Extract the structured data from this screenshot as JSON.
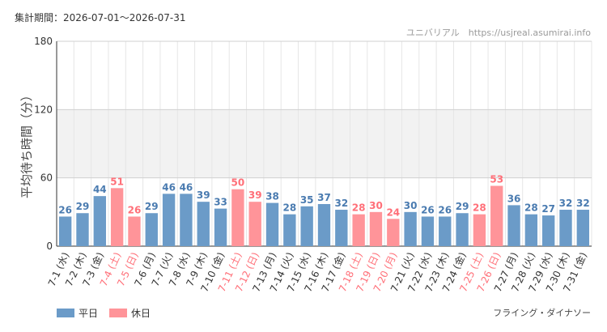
{
  "header": {
    "period": "集計期間：2026-07-01～2026-07-31",
    "source": "ユニバリアル　https://usjreal.asumirai.info"
  },
  "attraction": "フライング・ダイナソー",
  "colors": {
    "weekday": "#6b9bc8",
    "holiday": "#ff9499",
    "weekday_text": "#4a7bb0",
    "holiday_text": "#ff6f78",
    "band": "#f2f2f2",
    "grid": "#e6e6e6"
  },
  "legend": [
    {
      "label": "平日",
      "color": "#6b9bc8"
    },
    {
      "label": "休日",
      "color": "#ff9499"
    }
  ],
  "chart_data": {
    "type": "bar",
    "title": "",
    "xlabel": "",
    "ylabel": "平均待ち時間（分）",
    "ylim": [
      0,
      180
    ],
    "yticks": [
      0,
      60,
      120,
      180
    ],
    "grid": true,
    "shaded_band": [
      60,
      120
    ],
    "legend_position": "bottom-left",
    "categories": [
      "7-1 (水)",
      "7-2 (木)",
      "7-3 (金)",
      "7-4 (土)",
      "7-5 (日)",
      "7-6 (月)",
      "7-7 (火)",
      "7-8 (水)",
      "7-9 (木)",
      "7-10 (金)",
      "7-11 (土)",
      "7-12 (日)",
      "7-13 (月)",
      "7-14 (火)",
      "7-15 (水)",
      "7-16 (木)",
      "7-17 (金)",
      "7-18 (土)",
      "7-19 (日)",
      "7-20 (月)",
      "7-21 (火)",
      "7-22 (水)",
      "7-23 (木)",
      "7-24 (金)",
      "7-25 (土)",
      "7-26 (日)",
      "7-27 (月)",
      "7-28 (火)",
      "7-29 (水)",
      "7-30 (木)",
      "7-31 (金)"
    ],
    "values": [
      26,
      29,
      44,
      51,
      26,
      29,
      46,
      46,
      39,
      33,
      50,
      39,
      38,
      28,
      35,
      37,
      32,
      28,
      30,
      24,
      30,
      26,
      26,
      29,
      28,
      53,
      36,
      28,
      27,
      32,
      32
    ],
    "day_type": [
      "平日",
      "平日",
      "平日",
      "休日",
      "休日",
      "平日",
      "平日",
      "平日",
      "平日",
      "平日",
      "休日",
      "休日",
      "平日",
      "平日",
      "平日",
      "平日",
      "平日",
      "休日",
      "休日",
      "休日",
      "平日",
      "平日",
      "平日",
      "平日",
      "休日",
      "休日",
      "平日",
      "平日",
      "平日",
      "平日",
      "平日"
    ]
  }
}
